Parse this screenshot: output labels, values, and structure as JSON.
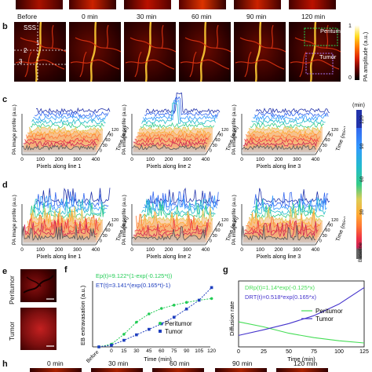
{
  "panel_letters": {
    "b": "b",
    "c": "c",
    "d": "d",
    "e": "e",
    "f": "f",
    "g": "g",
    "h": "h"
  },
  "panel_b": {
    "timepoints": [
      "Before",
      "0 min",
      "30 min",
      "60 min",
      "90 min",
      "120 min"
    ],
    "sss_label": "SSS",
    "line_numbers": [
      "1",
      "2",
      "3"
    ],
    "roi_labels": {
      "peritumor": "Peritumor",
      "tumor": "Tumor"
    },
    "colorbar": {
      "label": "PA amplitude (a.u.)",
      "max": "1",
      "min": "0"
    }
  },
  "panel_c": {
    "xlabels": [
      "Pixels along line 1",
      "Pixels along line 2",
      "Pixels along line 3"
    ],
    "ylabel": "PA image profile (a.u.)",
    "time_label": "Time (min)",
    "xticks": [
      "0",
      "100",
      "200",
      "300",
      "400"
    ],
    "time_ticks": [
      "120",
      "90",
      "60",
      "30",
      "0"
    ]
  },
  "panel_d": {
    "xlabels": [
      "Pixels along line 1",
      "Pixels along line 2",
      "Pixels along line 3"
    ],
    "ylabel": "PA image profile (a.u.)",
    "time_label": "Time (min)",
    "xticks": [
      "0",
      "100",
      "200",
      "300",
      "400"
    ],
    "time_ticks": [
      "120",
      "90",
      "60",
      "30",
      "0"
    ]
  },
  "colorbar_time": {
    "label": "(min)",
    "ticks": [
      "120",
      "90",
      "60",
      "30",
      "Baseline"
    ]
  },
  "panel_e": {
    "labels": [
      "Peritumor",
      "Tumor"
    ]
  },
  "panel_f": {
    "eq_peritumor": "Ep(t)=9.122*(1-exp(-0.125*t))",
    "eq_tumor": "ET(t)=3.141*(exp(0.165*t)-1)",
    "ylabel": "EB extravasation (a.u.)",
    "xlabel": "Time (min)",
    "xticks": [
      "Before",
      "0",
      "15",
      "30",
      "45",
      "60",
      "75",
      "90",
      "105",
      "120"
    ],
    "legend": [
      "Peritumor",
      "Tumor"
    ],
    "colors": {
      "peritumor": "#22cc55",
      "tumor": "#1f3fbf"
    }
  },
  "panel_g": {
    "eq_peritumor": "DRp(t)=1.14*exp(-0.125*x)",
    "eq_tumor": "DRT(t)=0.518*exp(0.165*x)",
    "ylabel": "Diffusion rate",
    "xlabel": "Time (min)",
    "xticks": [
      "0",
      "25",
      "50",
      "75",
      "100",
      "125"
    ],
    "legend": [
      "Peritumor",
      "Tumor"
    ],
    "colors": {
      "peritumor": "#44dd55",
      "tumor": "#4433cc"
    }
  },
  "panel_h": {
    "timepoints": [
      "0 min",
      "30 min",
      "60 min",
      "90 min",
      "120 min"
    ]
  },
  "chart_data": [
    {
      "type": "line",
      "title": "",
      "xlabel": "Time (min)",
      "ylabel": "EB extravasation (a.u.)",
      "categories": [
        "Before",
        "0",
        "15",
        "30",
        "45",
        "60",
        "75",
        "90",
        "105",
        "120"
      ],
      "series": [
        {
          "name": "Peritumor",
          "values": [
            0,
            0.5,
            2.3,
            4.5,
            6.0,
            7.0,
            7.6,
            8.1,
            8.5,
            8.8
          ]
        },
        {
          "name": "Tumor",
          "values": [
            0,
            0.3,
            1.2,
            2.2,
            3.2,
            4.2,
            5.4,
            6.9,
            8.5,
            10.8
          ]
        }
      ]
    },
    {
      "type": "line",
      "title": "",
      "xlabel": "Time (min)",
      "ylabel": "Diffusion rate",
      "x": [
        0,
        25,
        50,
        75,
        100,
        125
      ],
      "xlim": [
        0,
        125
      ],
      "series": [
        {
          "name": "Peritumor",
          "values": [
            1.14,
            0.91,
            0.62,
            0.42,
            0.28,
            0.18
          ]
        },
        {
          "name": "Tumor",
          "values": [
            0.52,
            0.78,
            1.06,
            1.42,
            1.95,
            2.7
          ]
        }
      ]
    }
  ]
}
